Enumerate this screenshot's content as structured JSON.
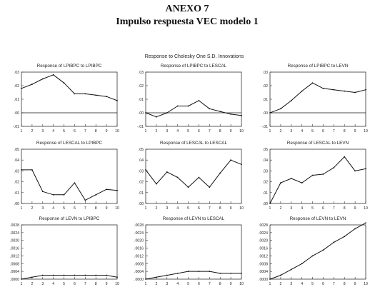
{
  "header": {
    "annex": "ANEXO 7",
    "title": "Impulso respuesta VEC modelo 1",
    "subtitle": "Response to Cholesky One S.D. Innovations"
  },
  "chart_data": [
    {
      "type": "line",
      "title": "Response of LPIBPC to LPIBPC",
      "x": [
        1,
        2,
        3,
        4,
        5,
        6,
        7,
        8,
        9,
        10
      ],
      "values": [
        0.018,
        0.021,
        0.025,
        0.028,
        0.022,
        0.014,
        0.014,
        0.013,
        0.012,
        0.009
      ],
      "xlim": [
        1,
        10
      ],
      "ylim": [
        -0.01,
        0.03
      ],
      "yticks": [
        ".03",
        ".02",
        ".01",
        ".00",
        "-.01"
      ],
      "xticks": [
        "1",
        "2",
        "3",
        "4",
        "5",
        "6",
        "7",
        "8",
        "9",
        "10"
      ],
      "zero_line": true
    },
    {
      "type": "line",
      "title": "Response of LPIBPC to LESCAL",
      "x": [
        1,
        2,
        3,
        4,
        5,
        6,
        7,
        8,
        9,
        10
      ],
      "values": [
        0.0,
        -0.003,
        0.0,
        0.005,
        0.005,
        0.009,
        0.003,
        0.001,
        -0.001,
        -0.002
      ],
      "xlim": [
        1,
        10
      ],
      "ylim": [
        -0.01,
        0.03
      ],
      "yticks": [
        ".03",
        ".02",
        ".01",
        ".00",
        "-.01"
      ],
      "xticks": [
        "1",
        "2",
        "3",
        "4",
        "5",
        "6",
        "7",
        "8",
        "9",
        "10"
      ],
      "zero_line": true
    },
    {
      "type": "line",
      "title": "Response of LPIBPC to LEVN",
      "x": [
        1,
        2,
        3,
        4,
        5,
        6,
        7,
        8,
        9,
        10
      ],
      "values": [
        0.0,
        0.003,
        0.009,
        0.016,
        0.022,
        0.018,
        0.017,
        0.016,
        0.015,
        0.017
      ],
      "xlim": [
        1,
        10
      ],
      "ylim": [
        -0.01,
        0.03
      ],
      "yticks": [
        ".03",
        ".02",
        ".01",
        ".00",
        "-.01"
      ],
      "xticks": [
        "1",
        "2",
        "3",
        "4",
        "5",
        "6",
        "7",
        "8",
        "9",
        "10"
      ],
      "zero_line": true
    },
    {
      "type": "line",
      "title": "Response of LESCAL to LPIBPC",
      "x": [
        1,
        2,
        3,
        4,
        5,
        6,
        7,
        8,
        9,
        10
      ],
      "values": [
        0.031,
        0.031,
        0.011,
        0.008,
        0.008,
        0.019,
        0.003,
        0.008,
        0.013,
        0.012
      ],
      "xlim": [
        1,
        10
      ],
      "ylim": [
        0.0,
        0.05
      ],
      "yticks": [
        ".05",
        ".04",
        ".03",
        ".02",
        ".01",
        ".00"
      ],
      "xticks": [
        "1",
        "2",
        "3",
        "4",
        "5",
        "6",
        "7",
        "8",
        "9",
        "10"
      ],
      "zero_line": false
    },
    {
      "type": "line",
      "title": "Response of LESCAL to LESCAL",
      "x": [
        1,
        2,
        3,
        4,
        5,
        6,
        7,
        8,
        9,
        10
      ],
      "values": [
        0.031,
        0.018,
        0.029,
        0.024,
        0.015,
        0.024,
        0.015,
        0.028,
        0.04,
        0.036
      ],
      "xlim": [
        1,
        10
      ],
      "ylim": [
        0.0,
        0.05
      ],
      "yticks": [
        ".05",
        ".04",
        ".03",
        ".02",
        ".01",
        ".00"
      ],
      "xticks": [
        "1",
        "2",
        "3",
        "4",
        "5",
        "6",
        "7",
        "8",
        "9",
        "10"
      ],
      "zero_line": false
    },
    {
      "type": "line",
      "title": "Response of LESCAL to LEVN",
      "x": [
        1,
        2,
        3,
        4,
        5,
        6,
        7,
        8,
        9,
        10
      ],
      "values": [
        0.0,
        0.019,
        0.023,
        0.019,
        0.026,
        0.027,
        0.033,
        0.043,
        0.03,
        0.032
      ],
      "xlim": [
        1,
        10
      ],
      "ylim": [
        0.0,
        0.05
      ],
      "yticks": [
        ".05",
        ".04",
        ".03",
        ".02",
        ".01",
        ".00"
      ],
      "xticks": [
        "1",
        "2",
        "3",
        "4",
        "5",
        "6",
        "7",
        "8",
        "9",
        "10"
      ],
      "zero_line": false
    },
    {
      "type": "line",
      "title": "Response of LEVN to LPIBPC",
      "x": [
        1,
        2,
        3,
        4,
        5,
        6,
        7,
        8,
        9,
        10
      ],
      "values": [
        0.0,
        0.0001,
        0.0002,
        0.0002,
        0.0002,
        0.0002,
        0.0002,
        0.0002,
        0.0002,
        0.0001
      ],
      "xlim": [
        1,
        10
      ],
      "ylim": [
        0.0,
        0.0028
      ],
      "yticks": [
        ".0028",
        ".0024",
        ".0020",
        ".0016",
        ".0012",
        ".0008",
        ".0004",
        ".0000"
      ],
      "xticks": [
        "1",
        "2",
        "3",
        "4",
        "5",
        "6",
        "7",
        "8",
        "9",
        "10"
      ],
      "zero_line": false
    },
    {
      "type": "line",
      "title": "Response of LEVN to LESCAL",
      "x": [
        1,
        2,
        3,
        4,
        5,
        6,
        7,
        8,
        9,
        10
      ],
      "values": [
        0.0,
        0.0001,
        0.0002,
        0.0003,
        0.0004,
        0.0004,
        0.0004,
        0.0003,
        0.0003,
        0.0003
      ],
      "xlim": [
        1,
        10
      ],
      "ylim": [
        0.0,
        0.0028
      ],
      "yticks": [
        ".0028",
        ".0024",
        ".0020",
        ".0016",
        ".0012",
        ".0008",
        ".0004",
        ".0000"
      ],
      "xticks": [
        "1",
        "2",
        "3",
        "4",
        "5",
        "6",
        "7",
        "8",
        "9",
        "10"
      ],
      "zero_line": false
    },
    {
      "type": "line",
      "title": "Response of LEVN to LEVN",
      "x": [
        1,
        2,
        3,
        4,
        5,
        6,
        7,
        8,
        9,
        10
      ],
      "values": [
        0.0,
        0.0002,
        0.0005,
        0.0008,
        0.0012,
        0.0015,
        0.0019,
        0.0022,
        0.0026,
        0.0029
      ],
      "xlim": [
        1,
        10
      ],
      "ylim": [
        0.0,
        0.0028
      ],
      "yticks": [
        ".0028",
        ".0024",
        ".0020",
        ".0016",
        ".0012",
        ".0008",
        ".0004",
        ".0000"
      ],
      "xticks": [
        "1",
        "2",
        "3",
        "4",
        "5",
        "6",
        "7",
        "8",
        "9",
        "10"
      ],
      "zero_line": false
    }
  ]
}
